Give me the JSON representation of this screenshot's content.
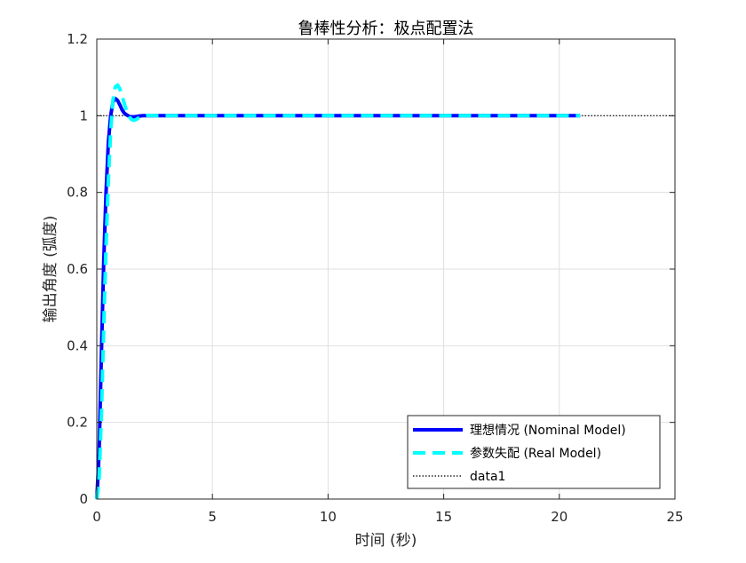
{
  "chart_data": {
    "type": "line",
    "title": "鲁棒性分析：极点配置法",
    "xlabel": "时间 (秒)",
    "ylabel": "输出角度 (弧度)",
    "xlim": [
      0,
      25
    ],
    "ylim": [
      0,
      1.2
    ],
    "xticks": [
      "0",
      "5",
      "10",
      "15",
      "20",
      "25"
    ],
    "yticks": [
      "0",
      "0.2",
      "0.4",
      "0.6",
      "0.8",
      "1",
      "1.2"
    ],
    "grid": true,
    "legend_position": "bottom-right",
    "series": [
      {
        "name": "理想情况 (Nominal Model)",
        "color": "#0000ff",
        "style": "solid",
        "x": [
          0,
          0.1,
          0.2,
          0.3,
          0.4,
          0.5,
          0.6,
          0.7,
          0.8,
          0.9,
          1.0,
          1.1,
          1.2,
          1.4,
          1.6,
          1.8,
          2.0,
          2.5,
          3,
          5,
          10,
          15,
          20,
          20.9
        ],
        "y": [
          0,
          0.12,
          0.38,
          0.62,
          0.8,
          0.93,
          1.0,
          1.035,
          1.045,
          1.04,
          1.028,
          1.015,
          1.006,
          0.998,
          0.997,
          0.999,
          1.0,
          1.0,
          1.0,
          1.0,
          1.0,
          1.0,
          1.0,
          1.0
        ]
      },
      {
        "name": "参数失配 (Real Model)",
        "color": "#00ffff",
        "style": "dashed",
        "x": [
          0,
          0.1,
          0.2,
          0.3,
          0.4,
          0.5,
          0.6,
          0.7,
          0.8,
          0.9,
          1.0,
          1.1,
          1.2,
          1.3,
          1.4,
          1.5,
          1.6,
          1.7,
          1.8,
          2.0,
          2.2,
          2.5,
          3,
          5,
          10,
          15,
          20,
          20.9
        ],
        "y": [
          0,
          0.05,
          0.22,
          0.45,
          0.66,
          0.83,
          0.96,
          1.04,
          1.075,
          1.08,
          1.07,
          1.05,
          1.03,
          1.01,
          0.997,
          0.99,
          0.988,
          0.99,
          0.994,
          0.999,
          1.001,
          1.0,
          1.0,
          1.0,
          1.0,
          1.0,
          1.0,
          1.0
        ]
      },
      {
        "name": "data1",
        "color": "#262626",
        "style": "dotted",
        "x": [
          0,
          25
        ],
        "y": [
          1,
          1
        ]
      }
    ]
  }
}
